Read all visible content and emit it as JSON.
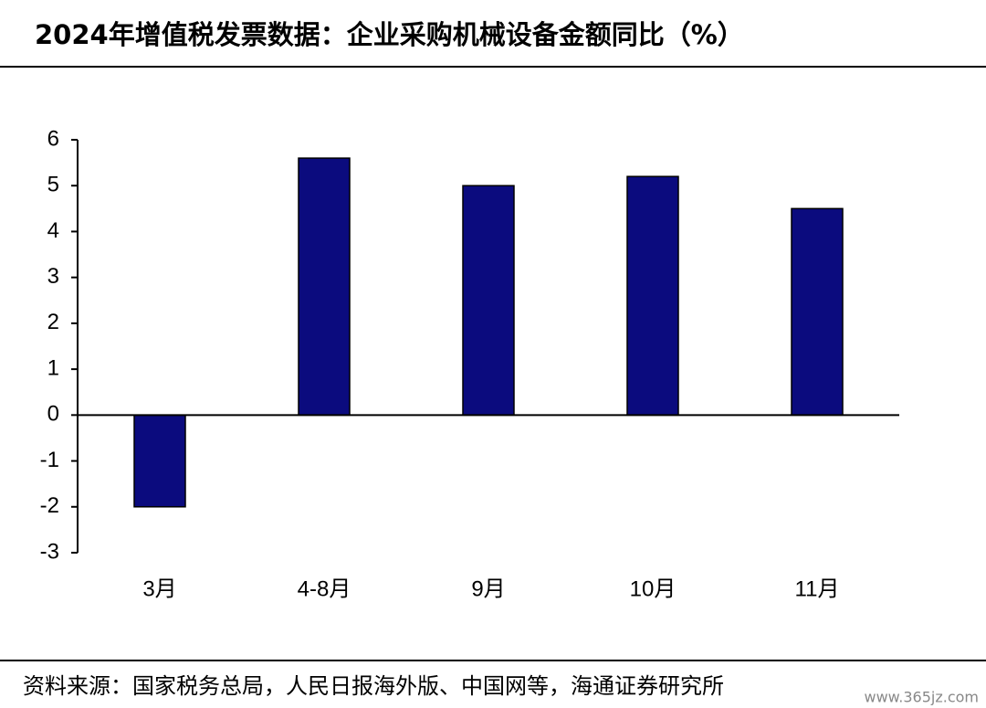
{
  "chart_data": {
    "type": "bar",
    "title": "2024年增值税发票数据：企业采购机械设备金额同比（%）",
    "categories": [
      "3月",
      "4-8月",
      "9月",
      "10月",
      "11月"
    ],
    "values": [
      -2,
      5.6,
      5.0,
      5.2,
      4.5
    ],
    "color": "#0b0b7e",
    "ylim": [
      -3,
      6
    ],
    "yticks": [
      -3,
      -2,
      -1,
      0,
      1,
      2,
      3,
      4,
      5,
      6
    ],
    "grid": false,
    "source": "资料来源：国家税务总局，人民日报海外版、中国网等，海通证券研究所",
    "watermark": "www.365jz.com"
  }
}
